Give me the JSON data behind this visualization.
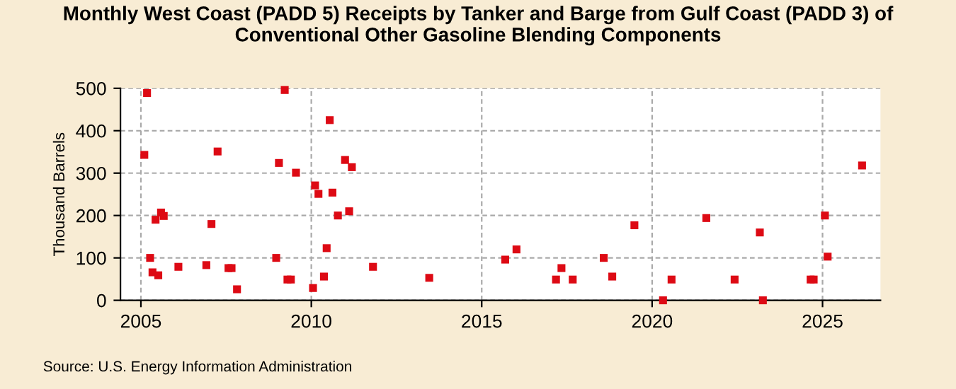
{
  "chart_data": {
    "type": "scatter",
    "title": "Monthly West Coast (PADD 5) Receipts by Tanker and Barge from Gulf Coast (PADD 3) of\nConventional Other Gasoline Blending Components",
    "ylabel": "Thousand Barrels",
    "annotations": [
      "Source: U.S. Energy Information Administration"
    ],
    "x": [
      2005.1,
      2005.18,
      2005.27,
      2005.34,
      2005.43,
      2005.51,
      2005.59,
      2005.67,
      2006.1,
      2006.92,
      2007.07,
      2007.25,
      2007.57,
      2007.66,
      2007.82,
      2008.97,
      2009.05,
      2009.22,
      2009.3,
      2009.4,
      2009.55,
      2010.05,
      2010.11,
      2010.21,
      2010.37,
      2010.45,
      2010.54,
      2010.62,
      2010.78,
      2010.99,
      2011.11,
      2011.19,
      2011.81,
      2013.46,
      2015.69,
      2016.02,
      2017.18,
      2017.34,
      2017.67,
      2018.58,
      2018.83,
      2019.48,
      2020.32,
      2020.57,
      2021.59,
      2022.42,
      2023.16,
      2023.25,
      2024.65,
      2024.74,
      2025.07,
      2025.15,
      2026.16
    ],
    "series": [
      {
        "color": "#dd0a14",
        "values": [
          343,
          489,
          100,
          66,
          190,
          59,
          207,
          199,
          79,
          83,
          180,
          351,
          76,
          76,
          26,
          100,
          324,
          496,
          49,
          49,
          301,
          29,
          271,
          251,
          56,
          123,
          425,
          254,
          200,
          331,
          210,
          314,
          79,
          53,
          96,
          120,
          49,
          76,
          49,
          100,
          56,
          177,
          0,
          49,
          194,
          49,
          160,
          0,
          49,
          49,
          200,
          103,
          318
        ]
      }
    ],
    "xlim": [
      2004.4,
      2026.7
    ],
    "xticks": [
      2005,
      2010,
      2015,
      2020,
      2025
    ],
    "ylim": [
      0,
      500
    ],
    "yticks": [
      0,
      100,
      200,
      300,
      400,
      500
    ],
    "grid": true,
    "marker": "square"
  }
}
